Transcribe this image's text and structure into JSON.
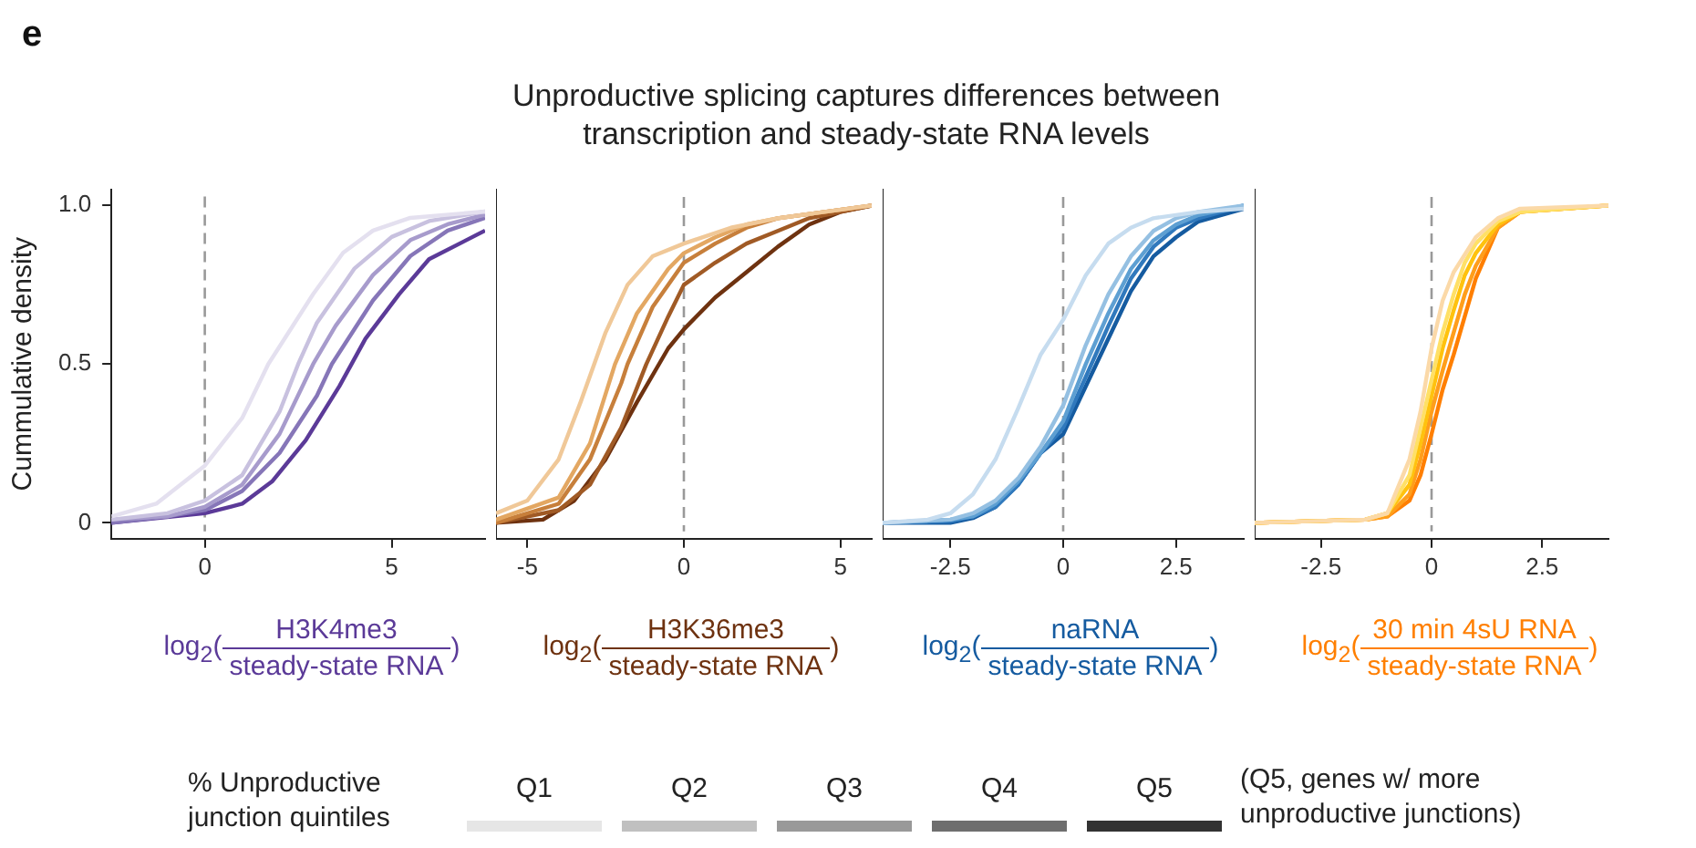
{
  "chart_data": [
    {
      "type": "other",
      "title": "Unproductive splicing captures differences between transcription and steady-state RNA levels",
      "annotations": [
        "e"
      ]
    },
    {
      "type": "line",
      "ylabel": "Cummulative density",
      "xlabel": "log$_{2}$( H3K4me3\nsteady-state RNA )",
      "marker": "none",
      "xlim": [
        -2.5,
        7.5
      ],
      "xticks": [
        0,
        5
      ],
      "ylim": [
        -0.05,
        1.05
      ],
      "yticks": [
        0,
        0.5,
        {
          "value": 1,
          "label": "1.0"
        }
      ],
      "ref_lines": [
        {
          "axis": "x",
          "value": 0,
          "color": "#999999",
          "line_style": "dashed"
        }
      ],
      "series": [
        {
          "color": "#e4e0ef",
          "x": [
            -2.5,
            -1.3,
            0,
            1,
            1.7,
            2.9,
            3.7,
            4.5,
            5.5,
            7.5
          ],
          "values": [
            0.02,
            0.06,
            0.18,
            0.33,
            0.5,
            0.72,
            0.85,
            0.92,
            0.96,
            0.98
          ]
        },
        {
          "color": "#c8c1df",
          "x": [
            -2.5,
            -1,
            0,
            1,
            2,
            2.5,
            3,
            4,
            5,
            6,
            7.5
          ],
          "values": [
            0.01,
            0.03,
            0.07,
            0.15,
            0.35,
            0.5,
            0.63,
            0.8,
            0.9,
            0.95,
            0.98
          ]
        },
        {
          "color": "#a79bcc",
          "x": [
            -2.5,
            -1,
            0,
            1,
            2,
            2.9,
            3.5,
            4.5,
            5.5,
            6.5,
            7.5
          ],
          "values": [
            0.01,
            0.02,
            0.05,
            0.12,
            0.28,
            0.5,
            0.62,
            0.78,
            0.89,
            0.94,
            0.97
          ]
        },
        {
          "color": "#8676b8",
          "x": [
            -2.5,
            -1,
            0,
            1,
            2,
            3,
            3.4,
            4.5,
            5.5,
            6.5,
            7.5
          ],
          "values": [
            0,
            0.02,
            0.04,
            0.1,
            0.22,
            0.4,
            0.5,
            0.7,
            0.84,
            0.92,
            0.96
          ]
        },
        {
          "color": "#5b3a98",
          "x": [
            -2.5,
            0,
            1,
            1.8,
            2.7,
            3.6,
            4.3,
            5.2,
            6,
            7.5
          ],
          "values": [
            0,
            0.03,
            0.06,
            0.13,
            0.26,
            0.43,
            0.58,
            0.72,
            0.83,
            0.92
          ]
        }
      ]
    },
    {
      "type": "line",
      "xlabel": "log$_{2}$( H3K36me3\nsteady-state RNA )",
      "marker": "none",
      "tick_labels": "x",
      "xlim": [
        -6,
        6
      ],
      "xticks": [
        -5,
        0,
        5
      ],
      "ylim": [
        -0.05,
        1.05
      ],
      "ref_lines": [
        {
          "axis": "x",
          "value": 0,
          "color": "#999999",
          "line_style": "dashed"
        }
      ],
      "series": [
        {
          "color": "#f0c898",
          "x": [
            -6,
            -5,
            -4,
            -3.3,
            -2.5,
            -1.8,
            -1,
            0,
            1.5,
            3,
            6
          ],
          "values": [
            0.03,
            0.07,
            0.2,
            0.38,
            0.6,
            0.75,
            0.84,
            0.88,
            0.93,
            0.96,
            1
          ]
        },
        {
          "color": "#e3a762",
          "x": [
            -6,
            -4,
            -3,
            -2.2,
            -1.5,
            -0.5,
            0,
            1,
            2,
            3,
            6
          ],
          "values": [
            0.01,
            0.08,
            0.25,
            0.5,
            0.66,
            0.8,
            0.85,
            0.9,
            0.94,
            0.96,
            1
          ]
        },
        {
          "color": "#c77f3b",
          "x": [
            -6,
            -4,
            -3,
            -2,
            -1.8,
            -1,
            0,
            1,
            2,
            3,
            6
          ],
          "values": [
            0,
            0.06,
            0.2,
            0.44,
            0.5,
            0.68,
            0.82,
            0.88,
            0.93,
            0.96,
            1
          ]
        },
        {
          "color": "#a05a25",
          "x": [
            -6,
            -4,
            -3,
            -2,
            -1.2,
            -0.5,
            0,
            1,
            2,
            3,
            4,
            6
          ],
          "values": [
            0,
            0.04,
            0.12,
            0.3,
            0.5,
            0.65,
            0.75,
            0.82,
            0.88,
            0.92,
            0.96,
            1
          ]
        },
        {
          "color": "#6e3210",
          "x": [
            -6,
            -4.5,
            -3.5,
            -2.5,
            -1.5,
            -0.5,
            0,
            1,
            2,
            3,
            4,
            5,
            6
          ],
          "values": [
            0,
            0.01,
            0.07,
            0.2,
            0.38,
            0.55,
            0.61,
            0.71,
            0.79,
            0.87,
            0.94,
            0.98,
            1
          ]
        }
      ]
    },
    {
      "type": "line",
      "xlabel": "log$_{2}$( naRNA\nsteady-state RNA )",
      "marker": "none",
      "tick_labels": "x",
      "xlim": [
        -4,
        4
      ],
      "xticks": [
        -2.5,
        0,
        2.5
      ],
      "ylim": [
        -0.05,
        1.05
      ],
      "ref_lines": [
        {
          "axis": "x",
          "value": 0,
          "color": "#999999",
          "line_style": "dashed"
        }
      ],
      "series": [
        {
          "color": "#c6dcef",
          "x": [
            -4,
            -3,
            -2.5,
            -2,
            -1.5,
            -1,
            -0.5,
            0,
            0.5,
            1,
            1.5,
            2,
            3,
            4
          ],
          "values": [
            0,
            0.01,
            0.03,
            0.09,
            0.2,
            0.36,
            0.53,
            0.64,
            0.78,
            0.88,
            0.93,
            0.96,
            0.98,
            0.99
          ]
        },
        {
          "color": "#95c0e2",
          "x": [
            -4,
            -2.5,
            -2,
            -1.5,
            -1,
            -0.5,
            0,
            0.5,
            1,
            1.5,
            2,
            2.5,
            3,
            4
          ],
          "values": [
            0,
            0.01,
            0.03,
            0.07,
            0.14,
            0.24,
            0.37,
            0.56,
            0.72,
            0.84,
            0.92,
            0.96,
            0.98,
            1
          ]
        },
        {
          "color": "#5d9fd2",
          "x": [
            -4,
            -2.5,
            -2,
            -1.5,
            -1,
            -0.5,
            0,
            0.5,
            1,
            1.5,
            2,
            2.5,
            3,
            4
          ],
          "values": [
            0,
            0.01,
            0.02,
            0.06,
            0.13,
            0.22,
            0.32,
            0.5,
            0.66,
            0.8,
            0.89,
            0.94,
            0.97,
            1
          ]
        },
        {
          "color": "#3079bd",
          "x": [
            -4,
            -2.5,
            -2,
            -1.5,
            -1,
            -0.5,
            0,
            0.5,
            1,
            1.5,
            2,
            2.5,
            3,
            4
          ],
          "values": [
            0,
            0.005,
            0.02,
            0.05,
            0.12,
            0.22,
            0.3,
            0.46,
            0.62,
            0.77,
            0.87,
            0.93,
            0.96,
            1
          ]
        },
        {
          "color": "#155ba0",
          "x": [
            -4,
            -2.5,
            -2,
            -1.5,
            -1,
            -0.5,
            0,
            0.5,
            1,
            1.5,
            2,
            2.5,
            3,
            4
          ],
          "values": [
            0,
            0,
            0.015,
            0.05,
            0.12,
            0.22,
            0.28,
            0.43,
            0.58,
            0.73,
            0.84,
            0.9,
            0.95,
            0.99
          ]
        }
      ]
    },
    {
      "type": "line",
      "xlabel": "log$_{2}$( 30 min 4sU RNA\nsteady-state RNA )",
      "marker": "none",
      "tick_labels": "x",
      "xlim": [
        -4,
        4
      ],
      "xticks": [
        -2.5,
        0,
        2.5
      ],
      "ylim": [
        -0.05,
        1.05
      ],
      "ref_lines": [
        {
          "axis": "x",
          "value": 0,
          "color": "#999999",
          "line_style": "dashed"
        }
      ],
      "series": [
        {
          "color": "#fbd9a8",
          "x": [
            -4,
            -1.5,
            -1,
            -0.5,
            -0.25,
            0,
            0.25,
            0.5,
            1,
            1.5,
            2,
            4
          ],
          "values": [
            0,
            0.01,
            0.03,
            0.2,
            0.35,
            0.55,
            0.7,
            0.79,
            0.9,
            0.96,
            0.99,
            1
          ]
        },
        {
          "color": "#ffe066",
          "x": [
            -4,
            -1.5,
            -1,
            -0.5,
            -0.25,
            0,
            0.25,
            0.5,
            0.75,
            1,
            1.5,
            2,
            4
          ],
          "values": [
            0,
            0.01,
            0.03,
            0.15,
            0.3,
            0.45,
            0.6,
            0.72,
            0.82,
            0.88,
            0.95,
            0.98,
            1
          ]
        },
        {
          "color": "#ffc20e",
          "x": [
            -4,
            -1.5,
            -1,
            -0.5,
            -0.25,
            0,
            0.25,
            0.5,
            0.75,
            1,
            1.5,
            2,
            4
          ],
          "values": [
            0,
            0.01,
            0.03,
            0.12,
            0.25,
            0.4,
            0.55,
            0.67,
            0.78,
            0.85,
            0.94,
            0.98,
            1
          ]
        },
        {
          "color": "#ff9e1b",
          "x": [
            -4,
            -1.5,
            -1,
            -0.5,
            -0.25,
            0,
            0.25,
            0.5,
            0.75,
            1,
            1.5,
            2,
            4
          ],
          "values": [
            0,
            0.01,
            0.02,
            0.09,
            0.2,
            0.35,
            0.48,
            0.6,
            0.72,
            0.81,
            0.93,
            0.98,
            1
          ]
        },
        {
          "color": "#ff7f00",
          "x": [
            -4,
            -1.5,
            -1,
            -0.5,
            -0.25,
            0,
            0.25,
            0.5,
            0.75,
            1,
            1.5,
            2,
            4
          ],
          "values": [
            0,
            0.01,
            0.02,
            0.07,
            0.15,
            0.28,
            0.42,
            0.53,
            0.65,
            0.77,
            0.93,
            0.98,
            1
          ]
        }
      ]
    },
    {
      "type": "other",
      "legend_title": "% Unproductive junction quintiles",
      "categories": [
        "Q1",
        "Q2",
        "Q3",
        "Q4",
        "Q5"
      ],
      "colors": [
        "#e6e6e6",
        "#c0c0c0",
        "#999999",
        "#6e6e6e",
        "#333333"
      ],
      "annotations": [
        "(Q5, genes w/ more unproductive junctions)"
      ]
    }
  ]
}
